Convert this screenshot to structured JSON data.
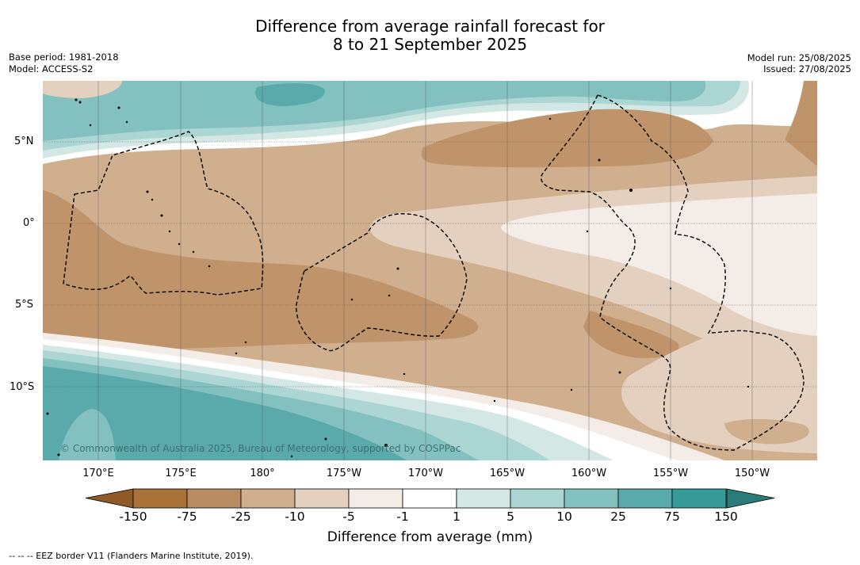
{
  "title": {
    "line1": "Difference from average rainfall forecast for",
    "line2": "8 to 21 September 2025"
  },
  "left_info": {
    "base_period": "Base period: 1981-2018",
    "model": "Model: ACCESS-S2"
  },
  "right_info": {
    "model_run": "Model run: 25/08/2025",
    "issued": "Issued: 27/08/2025"
  },
  "map": {
    "lat_labels": [
      "5°N",
      "0°",
      "5°S",
      "10°S"
    ],
    "lon_labels": [
      "170°E",
      "175°E",
      "180°",
      "175°W",
      "170°W",
      "165°W",
      "160°W",
      "155°W",
      "150°W"
    ],
    "copyright": "© Commonwealth of Australia 2025, Bureau of Meteorology, supported by COSPPac",
    "colors": {
      "brown_dark": "#bf946a",
      "brown_mid": "#d0af8f",
      "tan_light": "#e3d0be",
      "cream": "#f4ece6",
      "white": "#ffffff",
      "teal_pale": "#d3e8e5",
      "teal_light": "#acd6d3",
      "teal_mid": "#82c1bf",
      "teal_dark": "#5aaaab"
    }
  },
  "colorbar": {
    "ticks": [
      "-150",
      "-75",
      "-25",
      "-10",
      "-5",
      "-1",
      "1",
      "5",
      "10",
      "25",
      "75",
      "150"
    ],
    "colors": [
      "#a87238",
      "#b98c63",
      "#d0af8f",
      "#e3d0be",
      "#f4ece6",
      "#ffffff",
      "#d3e8e5",
      "#acd6d3",
      "#82c1bf",
      "#5aaaab",
      "#359a98"
    ],
    "end_low_color": "#8f5a26",
    "end_high_color": "#2a7c7a",
    "label": "Difference from average (mm)"
  },
  "footer": {
    "eez_note": "--  --  -- EEZ border V11 (Flanders Marine Institute, 2019)."
  }
}
